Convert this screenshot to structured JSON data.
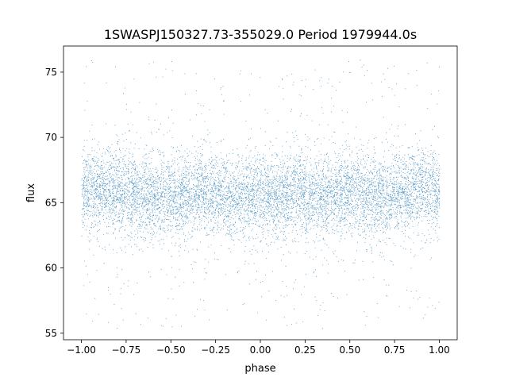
{
  "chart_data": {
    "type": "scatter",
    "title": "1SWASPJ150327.73-355029.0 Period 1979944.0s",
    "xlabel": "phase",
    "ylabel": "flux",
    "xlim": [
      -1.1,
      1.1
    ],
    "ylim": [
      54.5,
      77
    ],
    "x_ticks": [
      -1.0,
      -0.75,
      -0.5,
      -0.25,
      0.0,
      0.25,
      0.5,
      0.75,
      1.0
    ],
    "x_tick_labels": [
      "−1.00",
      "−0.75",
      "−0.50",
      "−0.25",
      "0.00",
      "0.25",
      "0.50",
      "0.75",
      "1.00"
    ],
    "y_ticks": [
      55,
      60,
      65,
      70,
      75
    ],
    "y_tick_labels": [
      "55",
      "60",
      "65",
      "70",
      "75"
    ],
    "grid": false,
    "legend": "none",
    "marker_color": "#1f77b4",
    "series": [
      {
        "x_range": [
          -1.0,
          1.0
        ],
        "core_flux_range": [
          62.5,
          69.5
        ],
        "median_flux": 66,
        "full_flux_range": [
          55.3,
          76.0
        ],
        "x_sample": [
          -1.0,
          -0.9,
          -0.8,
          -0.7,
          -0.6,
          -0.5,
          -0.4,
          -0.3,
          -0.2,
          -0.1,
          0.0,
          0.1,
          0.2,
          0.3,
          0.4,
          0.5,
          0.6,
          0.7,
          0.8,
          0.9,
          1.0
        ],
        "y_sample_median": [
          66,
          66,
          66,
          65.5,
          65.5,
          65.5,
          65.5,
          66,
          65.5,
          65.5,
          65.5,
          65.5,
          66,
          65.5,
          65.5,
          66,
          65.5,
          65.5,
          66,
          66,
          66
        ]
      }
    ]
  }
}
